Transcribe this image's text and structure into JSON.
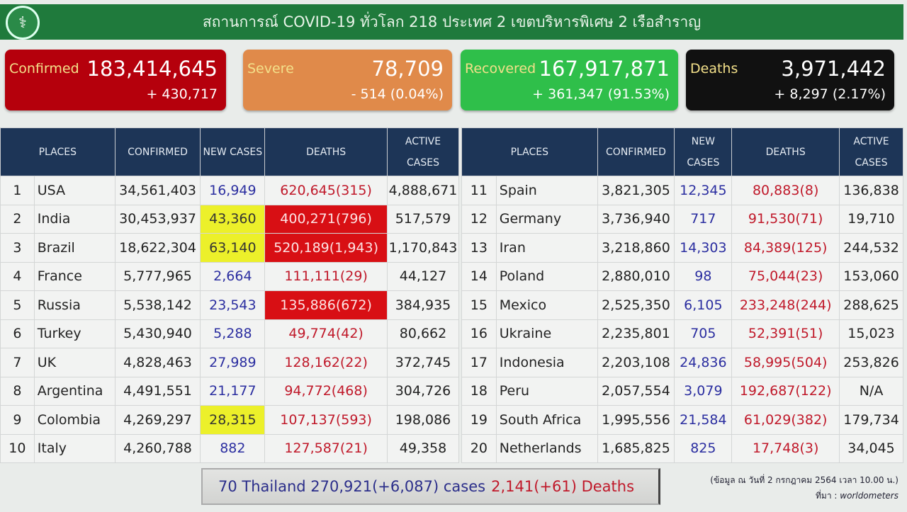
{
  "header": {
    "title": "สถานการณ์ COVID-19 ทั่วโลก 218 ประเทศ 2 เขตบริหารพิเศษ 2 เรือสำราญ",
    "logo_icon": "ministry-of-public-health-logo"
  },
  "cards": {
    "confirmed": {
      "label": "Confirmed",
      "value": "183,414,645",
      "change": "+ 430,717",
      "color": "#b5000c"
    },
    "severe": {
      "label": "Severe",
      "value": "78,709",
      "change": "- 514 (0.04%)",
      "color": "#e08a4a"
    },
    "recovered": {
      "label": "Recovered",
      "value": "167,917,871",
      "change": "+ 361,347 (91.53%)",
      "color": "#2fbf4a"
    },
    "deaths": {
      "label": "Deaths",
      "value": "3,971,442",
      "change": "+ 8,297 (2.17%)",
      "color": "#111111"
    }
  },
  "columns": [
    "PLACES",
    "CONFIRMED",
    "NEW CASES",
    "DEATHS",
    "ACTIVE CASES"
  ],
  "left_rows": [
    {
      "rank": "1",
      "place": "USA",
      "confirmed": "34,561,403",
      "new": "16,949",
      "deaths": "620,645(315)",
      "active": "4,888,671"
    },
    {
      "rank": "2",
      "place": "India",
      "confirmed": "30,453,937",
      "new": "43,360",
      "deaths": "400,271(796)",
      "active": "517,579",
      "new_hl": true,
      "deaths_hl": true
    },
    {
      "rank": "3",
      "place": "Brazil",
      "confirmed": "18,622,304",
      "new": "63,140",
      "deaths": "520,189(1,943)",
      "active": "1,170,843",
      "new_hl": true,
      "deaths_hl": true
    },
    {
      "rank": "4",
      "place": "France",
      "confirmed": "5,777,965",
      "new": "2,664",
      "deaths": "111,111(29)",
      "active": "44,127"
    },
    {
      "rank": "5",
      "place": "Russia",
      "confirmed": "5,538,142",
      "new": "23,543",
      "deaths": "135,886(672)",
      "active": "384,935",
      "deaths_hl": true
    },
    {
      "rank": "6",
      "place": "Turkey",
      "confirmed": "5,430,940",
      "new": "5,288",
      "deaths": "49,774(42)",
      "active": "80,662"
    },
    {
      "rank": "7",
      "place": "UK",
      "confirmed": "4,828,463",
      "new": "27,989",
      "deaths": "128,162(22)",
      "active": "372,745"
    },
    {
      "rank": "8",
      "place": "Argentina",
      "confirmed": "4,491,551",
      "new": "21,177",
      "deaths": "94,772(468)",
      "active": "304,726"
    },
    {
      "rank": "9",
      "place": "Colombia",
      "confirmed": "4,269,297",
      "new": "28,315",
      "deaths": "107,137(593)",
      "active": "198,086",
      "new_hl": true
    },
    {
      "rank": "10",
      "place": "Italy",
      "confirmed": "4,260,788",
      "new": "882",
      "deaths": "127,587(21)",
      "active": "49,358"
    }
  ],
  "right_rows": [
    {
      "rank": "11",
      "place": "Spain",
      "confirmed": "3,821,305",
      "new": "12,345",
      "deaths": "80,883(8)",
      "active": "136,838"
    },
    {
      "rank": "12",
      "place": "Germany",
      "confirmed": "3,736,940",
      "new": "717",
      "deaths": "91,530(71)",
      "active": "19,710"
    },
    {
      "rank": "13",
      "place": "Iran",
      "confirmed": "3,218,860",
      "new": "14,303",
      "deaths": "84,389(125)",
      "active": "244,532"
    },
    {
      "rank": "14",
      "place": "Poland",
      "confirmed": "2,880,010",
      "new": "98",
      "deaths": "75,044(23)",
      "active": "153,060"
    },
    {
      "rank": "15",
      "place": "Mexico",
      "confirmed": "2,525,350",
      "new": "6,105",
      "deaths": "233,248(244)",
      "active": "288,625"
    },
    {
      "rank": "16",
      "place": "Ukraine",
      "confirmed": "2,235,801",
      "new": "705",
      "deaths": "52,391(51)",
      "active": "15,023"
    },
    {
      "rank": "17",
      "place": "Indonesia",
      "confirmed": "2,203,108",
      "new": "24,836",
      "deaths": "58,995(504)",
      "active": "253,826"
    },
    {
      "rank": "18",
      "place": "Peru",
      "confirmed": "2,057,554",
      "new": "3,079",
      "deaths": "192,687(122)",
      "active": "N/A"
    },
    {
      "rank": "19",
      "place": "South Africa",
      "confirmed": "1,995,556",
      "new": "21,584",
      "deaths": "61,029(382)",
      "active": "179,734"
    },
    {
      "rank": "20",
      "place": "Netherlands",
      "confirmed": "1,685,825",
      "new": "825",
      "deaths": "17,748(3)",
      "active": "34,045"
    }
  ],
  "thailand": {
    "summary": "70 Thailand 270,921(+6,087) cases",
    "deaths": "2,141(+61) Deaths"
  },
  "source": {
    "date_note": "(ข้อมูล ณ วันที่ 2 กรกฎาคม 2564 เวลา 10.00 น.)",
    "source_label": "ที่มา :",
    "source_name": "worldometers"
  }
}
